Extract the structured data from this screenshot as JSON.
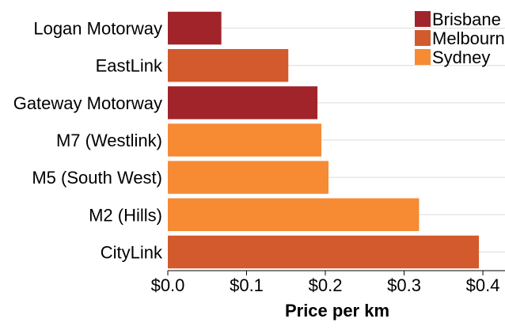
{
  "chart_data": {
    "type": "bar",
    "orientation": "horizontal",
    "categories": [
      "Logan Motorway",
      "EastLink",
      "Gateway Motorway",
      "M7 (Westlink)",
      "M5 (South West)",
      "M2 (Hills)",
      "CityLink"
    ],
    "values": [
      0.068,
      0.153,
      0.19,
      0.195,
      0.204,
      0.319,
      0.395
    ],
    "bar_city": [
      "Brisbane",
      "Melbourne",
      "Brisbane",
      "Sydney",
      "Sydney",
      "Sydney",
      "Melbourne"
    ],
    "xlabel": "Price per km",
    "ylabel": "",
    "xlim": [
      0,
      0.41
    ],
    "xticks": [
      0.0,
      0.1,
      0.2,
      0.3,
      0.4
    ],
    "xtick_labels": [
      "$0.0",
      "$0.1",
      "$0.2",
      "$0.3",
      "$0.4"
    ],
    "grid": true,
    "legend": {
      "placement": "top-right",
      "entries": [
        {
          "name": "Brisbane",
          "color": "#a0242a"
        },
        {
          "name": "Melbourne",
          "color": "#d35a2c"
        },
        {
          "name": "Sydney",
          "color": "#f68b34"
        }
      ]
    }
  }
}
